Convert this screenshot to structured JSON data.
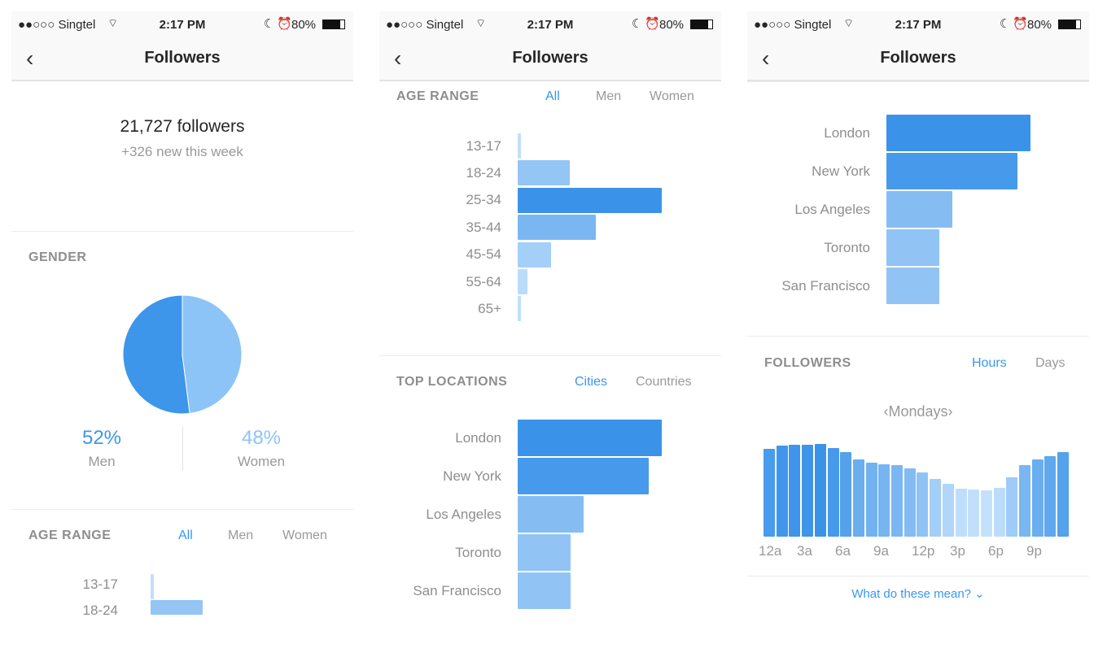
{
  "status_bar": {
    "carrier": "●●○○○ Singtel",
    "time": "2:17 PM",
    "battery": "80%"
  },
  "nav": {
    "title": "Followers",
    "back_icon": "chevron-left-icon"
  },
  "summary": {
    "followers": "21,727 followers",
    "new_this_week": "+326 new this week"
  },
  "gender": {
    "header": "GENDER",
    "men_percent": "52%",
    "men_label": "Men",
    "women_percent": "48%",
    "women_label": "Women",
    "men_share": 52,
    "women_share": 48,
    "men_color": "#3d96ea",
    "women_color": "#8cc4f8"
  },
  "age_range": {
    "header": "AGE RANGE",
    "tabs": [
      "All",
      "Men",
      "Women"
    ],
    "active_tab": "All",
    "categories": [
      "13-17",
      "18-24",
      "25-34",
      "35-44",
      "45-54",
      "55-64",
      "65+"
    ],
    "values": [
      2,
      36,
      100,
      54,
      23,
      7,
      2
    ]
  },
  "top_locations": {
    "header": "TOP LOCATIONS",
    "tabs": [
      "Cities",
      "Countries"
    ],
    "active_tab": "Cities",
    "categories": [
      "London",
      "New York",
      "Los Angeles",
      "Toronto",
      "San Francisco"
    ],
    "values": [
      100,
      91,
      46,
      37,
      37
    ]
  },
  "followers_activity": {
    "header": "FOLLOWERS",
    "tabs": [
      "Hours",
      "Days"
    ],
    "active_tab": "Hours",
    "day_selector": "‹Mondays›",
    "hour_values": [
      95,
      98,
      99,
      99,
      100,
      96,
      91,
      83,
      80,
      78,
      77,
      74,
      69,
      62,
      57,
      52,
      51,
      50,
      53,
      64,
      77,
      83,
      87,
      91
    ],
    "x_tick_labels": [
      "12a",
      "3a",
      "6a",
      "9a",
      "12p",
      "3p",
      "6p",
      "9p"
    ]
  },
  "help_link": "What do these mean? ⌄",
  "colors": {
    "accent": "#3897f0",
    "bar_max": "#3b93e9",
    "bar_min": "#c4e1fc"
  }
}
